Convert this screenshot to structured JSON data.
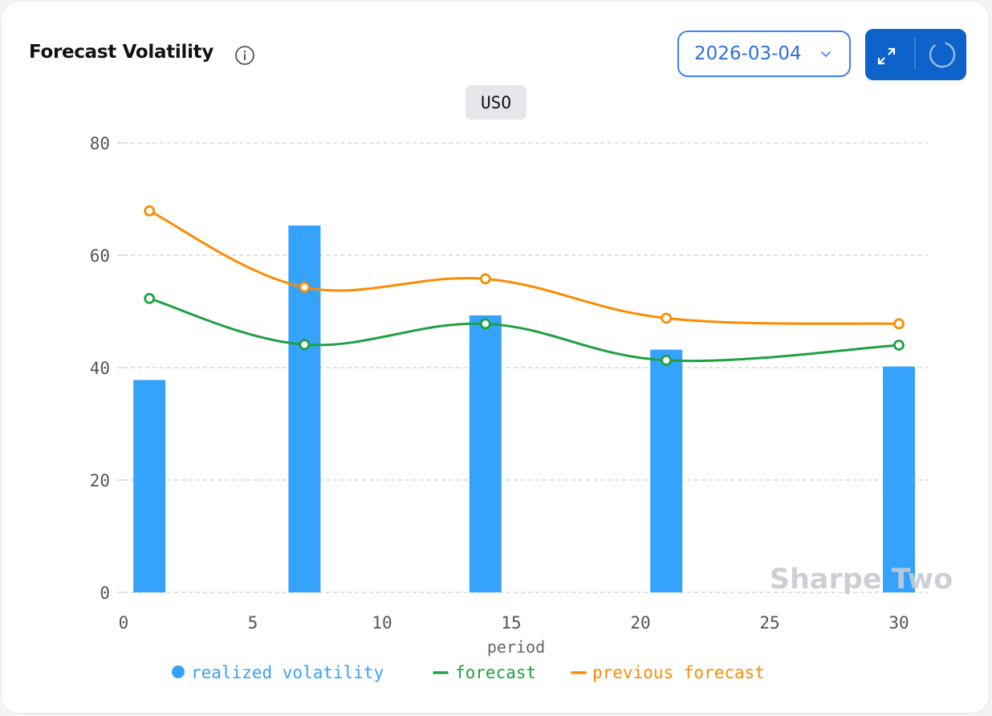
{
  "header": {
    "title": "Forecast Volatility",
    "date_value": "2026-03-04"
  },
  "icons": {
    "info": "info-icon",
    "chevron": "chevron-down-icon",
    "expand": "expand-icon",
    "refresh": "refresh-icon"
  },
  "colors": {
    "bar": "#35a2fb",
    "forecast": "#1fa042",
    "previous_forecast": "#fb8c00",
    "accent": "#0d63c9",
    "watermark": "#c7cbd2"
  },
  "watermark": "Sharpe Two",
  "chart_data": {
    "type": "bar",
    "title": "USO",
    "xlabel": "period",
    "ylabel": "",
    "xlim": [
      0,
      31.5
    ],
    "ylim": [
      0,
      80
    ],
    "x_ticks": [
      "0",
      "5",
      "10",
      "15",
      "20",
      "25",
      "30"
    ],
    "y_ticks": [
      "0",
      "20",
      "40",
      "60",
      "80"
    ],
    "grid": true,
    "legend_position": "bottom",
    "series": [
      {
        "name": "realized volatility",
        "kind": "bar",
        "color": "#35a2fb",
        "x": [
          1,
          7,
          14,
          21,
          30
        ],
        "values": [
          37.8,
          65.3,
          49.3,
          43.2,
          40.2
        ]
      },
      {
        "name": "forecast",
        "kind": "line",
        "color": "#1fa042",
        "x": [
          1,
          7,
          14,
          21,
          30
        ],
        "values": [
          52.3,
          44.1,
          47.8,
          41.3,
          44.0
        ]
      },
      {
        "name": "previous forecast",
        "kind": "line",
        "color": "#fb8c00",
        "x": [
          1,
          7,
          14,
          21,
          30
        ],
        "values": [
          67.9,
          54.3,
          55.8,
          48.8,
          47.8
        ]
      }
    ]
  }
}
